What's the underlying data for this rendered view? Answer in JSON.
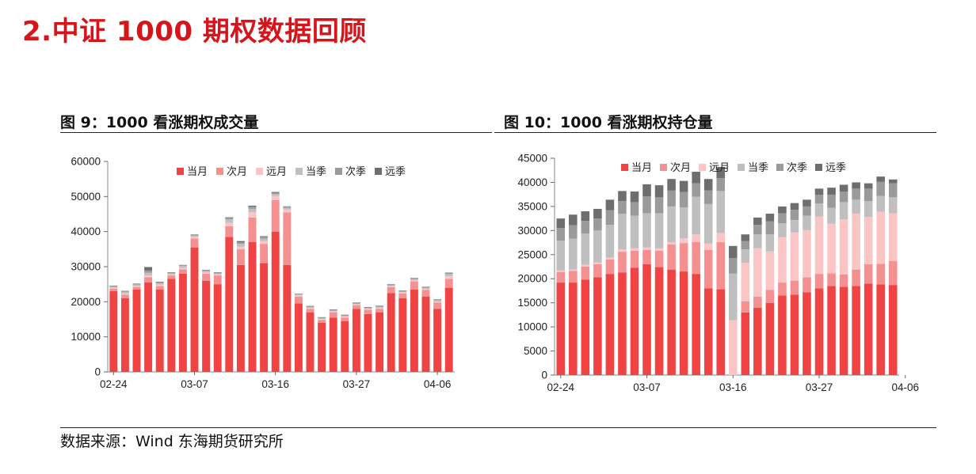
{
  "page": {
    "title": "2.中证 1000 期权数据回顾"
  },
  "source": "数据来源：Wind 东海期货研究所",
  "colors": [
    "#f04343",
    "#f59090",
    "#fbc5c5",
    "#bfbfbf",
    "#9a9a9a",
    "#6e6e6e"
  ],
  "chart_data": [
    {
      "type": "bar",
      "stacked": true,
      "title": "图 9：1000 看涨期权成交量",
      "ylim": [
        0,
        60000
      ],
      "yticks": [
        0,
        10000,
        20000,
        30000,
        40000,
        50000,
        60000
      ],
      "xtick_labels": [
        "02-24",
        "03-07",
        "03-16",
        "03-27",
        "04-06"
      ],
      "legend_position": "top-right",
      "series": [
        {
          "name": "当月",
          "values": [
            23000,
            21000,
            23500,
            25500,
            23500,
            26500,
            28000,
            35500,
            26000,
            25000,
            38500,
            30500,
            37000,
            31000,
            40000,
            30500,
            19500,
            17000,
            14000,
            15500,
            14500,
            18000,
            16500,
            17000,
            22500,
            21000,
            23500,
            21500,
            18000,
            24000
          ]
        },
        {
          "name": "次月",
          "values": [
            700,
            1000,
            700,
            1500,
            1000,
            1000,
            1200,
            2500,
            2000,
            2500,
            3000,
            4500,
            7000,
            5500,
            9000,
            15000,
            2000,
            1000,
            800,
            1500,
            1000,
            1000,
            1200,
            1000,
            1700,
            1400,
            2300,
            1900,
            1800,
            2500
          ]
        },
        {
          "name": "远月",
          "values": [
            300,
            400,
            300,
            500,
            400,
            300,
            500,
            500,
            400,
            300,
            1000,
            700,
            1500,
            800,
            1200,
            800,
            400,
            300,
            300,
            300,
            300,
            300,
            300,
            300,
            300,
            300,
            300,
            300,
            300,
            800
          ]
        },
        {
          "name": "当季",
          "values": [
            300,
            400,
            400,
            800,
            400,
            300,
            500,
            400,
            400,
            300,
            1000,
            800,
            1000,
            700,
            500,
            500,
            200,
            200,
            200,
            200,
            200,
            200,
            200,
            300,
            200,
            200,
            400,
            300,
            300,
            600
          ]
        },
        {
          "name": "次季",
          "values": [
            200,
            200,
            200,
            600,
            300,
            200,
            200,
            200,
            200,
            200,
            500,
            500,
            600,
            500,
            400,
            300,
            100,
            200,
            200,
            200,
            200,
            200,
            200,
            200,
            200,
            200,
            200,
            200,
            200,
            300
          ]
        },
        {
          "name": "远季",
          "values": [
            100,
            100,
            100,
            1000,
            100,
            100,
            100,
            100,
            100,
            100,
            100,
            300,
            300,
            200,
            200,
            100,
            100,
            100,
            100,
            100,
            100,
            100,
            100,
            100,
            100,
            100,
            100,
            100,
            100,
            100
          ]
        }
      ]
    },
    {
      "type": "bar",
      "stacked": true,
      "title": "图 10：1000 看涨期权持仓量",
      "ylim": [
        0,
        45000
      ],
      "yticks": [
        0,
        5000,
        10000,
        15000,
        20000,
        25000,
        30000,
        35000,
        40000,
        45000
      ],
      "xtick_labels": [
        "02-24",
        "03-07",
        "03-16",
        "03-27",
        "04-06"
      ],
      "legend_position": "top-right",
      "series": [
        {
          "name": "当月",
          "values": [
            19200,
            19200,
            19800,
            20300,
            21000,
            21300,
            22300,
            23000,
            22400,
            21900,
            21500,
            21000,
            18000,
            17800,
            0,
            13000,
            14000,
            15000,
            16500,
            16700,
            17200,
            18000,
            18500,
            18300,
            18500,
            19000,
            18800,
            18700
          ]
        },
        {
          "name": "次月",
          "values": [
            2200,
            2400,
            2700,
            2700,
            3000,
            4300,
            3500,
            3000,
            3400,
            5200,
            5900,
            6600,
            8000,
            9800,
            0,
            2300,
            2300,
            2700,
            2700,
            2900,
            3100,
            3000,
            2600,
            2600,
            3400,
            4000,
            4300,
            5000
          ]
        },
        {
          "name": "远月",
          "values": [
            300,
            300,
            400,
            400,
            400,
            500,
            500,
            500,
            500,
            500,
            1000,
            1600,
            1300,
            1900,
            11400,
            8000,
            10000,
            8000,
            9400,
            10000,
            9800,
            11900,
            10300,
            11400,
            11600,
            9800,
            10800,
            9900
          ]
        },
        {
          "name": "当季",
          "values": [
            6200,
            6400,
            6500,
            6600,
            6800,
            7400,
            6800,
            7100,
            7300,
            7400,
            6400,
            7800,
            8200,
            8700,
            9700,
            2800,
            2900,
            3500,
            2900,
            2600,
            3000,
            2700,
            3300,
            3600,
            2900,
            3300,
            3300,
            3300
          ]
        },
        {
          "name": "次季",
          "values": [
            2600,
            2800,
            2600,
            2500,
            3000,
            2600,
            2800,
            3500,
            3300,
            3300,
            3200,
            2800,
            2800,
            2700,
            3200,
            1700,
            2000,
            2700,
            2100,
            2100,
            1900,
            1800,
            2700,
            2200,
            2300,
            2600,
            2900,
            2900
          ]
        },
        {
          "name": "远季",
          "values": [
            2000,
            2200,
            2000,
            2000,
            2200,
            2100,
            2200,
            2500,
            2500,
            2400,
            2300,
            2400,
            2400,
            2300,
            2500,
            1400,
            1500,
            1600,
            1400,
            1400,
            1400,
            1300,
            1500,
            1400,
            1300,
            1100,
            1100,
            800
          ]
        }
      ]
    }
  ]
}
